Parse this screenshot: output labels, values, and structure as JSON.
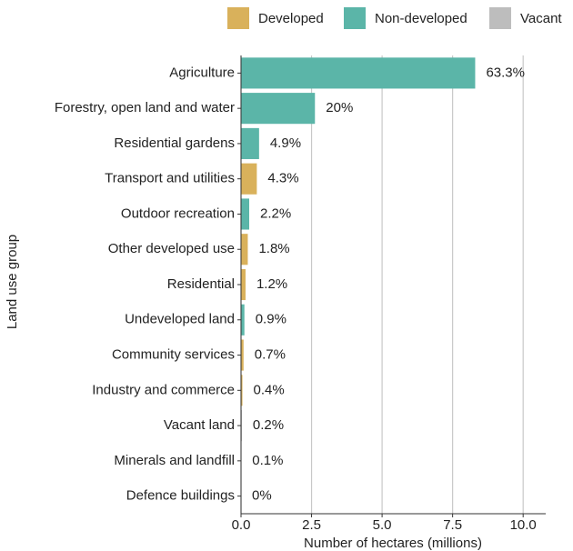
{
  "chart_data": {
    "type": "bar",
    "orientation": "horizontal",
    "x_label": "Number of hectares (millions)",
    "y_label": "Land use group",
    "categories": [
      "Agriculture",
      "Forestry, open land and water",
      "Residential gardens",
      "Transport and utilities",
      "Outdoor recreation",
      "Other developed use",
      "Residential",
      "Undeveloped land",
      "Community services",
      "Industry and commerce",
      "Vacant land",
      "Minerals and landfill",
      "Defence buildings"
    ],
    "values": [
      8.3,
      2.62,
      0.64,
      0.56,
      0.29,
      0.24,
      0.16,
      0.12,
      0.09,
      0.05,
      0.03,
      0.01,
      0
    ],
    "value_labels": [
      "63.3%",
      "20%",
      "4.9%",
      "4.3%",
      "2.2%",
      "1.8%",
      "1.2%",
      "0.9%",
      "0.7%",
      "0.4%",
      "0.2%",
      "0.1%",
      "0%"
    ],
    "colors": [
      "#5bb5a8",
      "#5bb5a8",
      "#5bb5a8",
      "#d9b15b",
      "#5bb5a8",
      "#d9b15b",
      "#d9b15b",
      "#5bb5a8",
      "#d9b15b",
      "#d9b15b",
      "#bdbdbd",
      "#d9b15b",
      "#d9b15b"
    ],
    "legend": [
      {
        "name": "Developed",
        "color": "#d9b15b"
      },
      {
        "name": "Non-developed",
        "color": "#5bb5a8"
      },
      {
        "name": "Vacant",
        "color": "#bdbdbd"
      }
    ],
    "xlim": [
      0,
      10.8
    ],
    "xticks": [
      {
        "value": 0,
        "label": "0.0"
      },
      2.5,
      {
        "value": 5,
        "label": "5.0"
      },
      7.5,
      {
        "value": 10,
        "label": "10.0"
      }
    ],
    "grid": true
  }
}
